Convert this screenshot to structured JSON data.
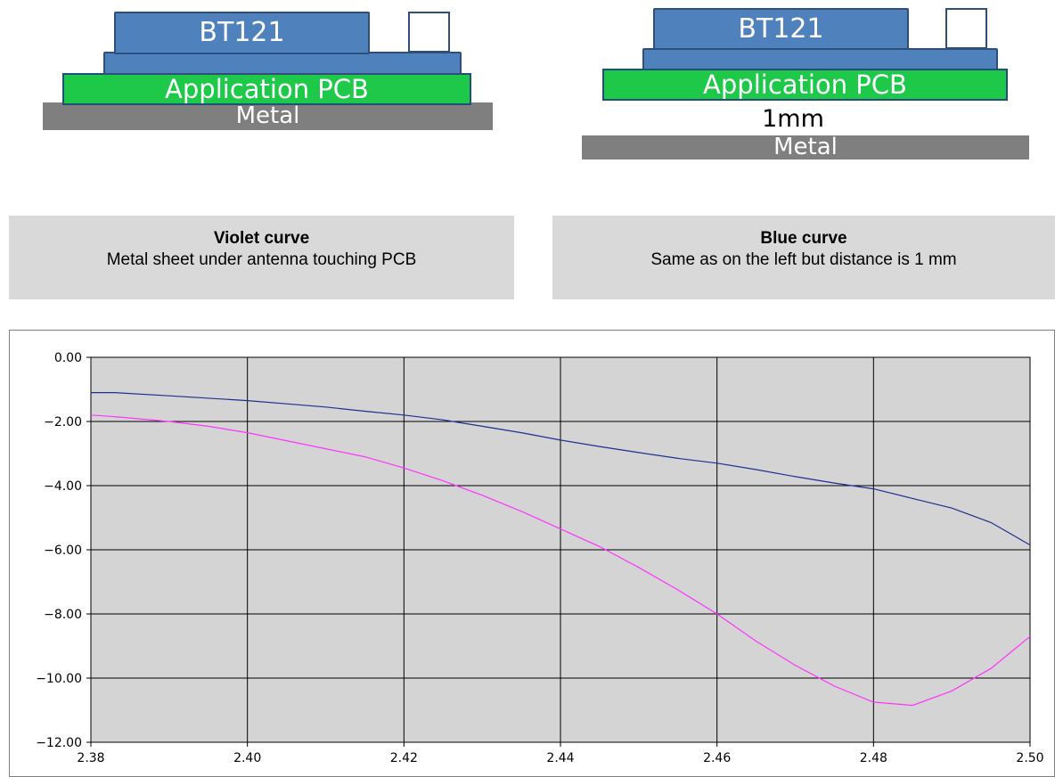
{
  "diagrams": [
    {
      "chip_label": "BT121",
      "pcb_label": "Application PCB",
      "metal_label": "Metal"
    },
    {
      "chip_label": "BT121",
      "pcb_label": "Application PCB",
      "gap_label": "1mm",
      "metal_label": "Metal"
    }
  ],
  "captions": [
    {
      "title": "Violet curve",
      "description": "Metal sheet under antenna touching PCB"
    },
    {
      "title": "Blue curve",
      "description": "Same as on the left but distance is 1 mm"
    }
  ],
  "colors": {
    "plot_background": "#d4d4d4",
    "violet_series": "#ff33ff",
    "blue_series": "#1f2f8f",
    "grid": "#000000"
  },
  "chart_data": {
    "type": "line",
    "title": "",
    "xlabel": "",
    "ylabel": "",
    "xlim": [
      2.38,
      2.5
    ],
    "ylim": [
      -12,
      0
    ],
    "xticks": [
      2.38,
      2.4,
      2.42,
      2.44,
      2.46,
      2.48,
      2.5
    ],
    "xtick_labels": [
      "2.38",
      "2.40",
      "2.42",
      "2.44",
      "2.46",
      "2.48",
      "2.50"
    ],
    "yticks": [
      0,
      -2,
      -4,
      -6,
      -8,
      -10,
      -12
    ],
    "ytick_labels": [
      "0.00",
      "−2.00",
      "−4.00",
      "−6.00",
      "−8.00",
      "−10.00",
      "−12.00"
    ],
    "grid": true,
    "series": [
      {
        "color": "#1f2f8f",
        "x": [
          2.38,
          2.383,
          2.39,
          2.4,
          2.405,
          2.41,
          2.415,
          2.42,
          2.425,
          2.43,
          2.435,
          2.44,
          2.445,
          2.45,
          2.455,
          2.46,
          2.465,
          2.47,
          2.475,
          2.48,
          2.485,
          2.49,
          2.495,
          2.5
        ],
        "y": [
          -1.1,
          -1.1,
          -1.2,
          -1.35,
          -1.45,
          -1.55,
          -1.68,
          -1.8,
          -1.95,
          -2.15,
          -2.35,
          -2.58,
          -2.78,
          -2.97,
          -3.15,
          -3.3,
          -3.5,
          -3.72,
          -3.92,
          -4.1,
          -4.4,
          -4.7,
          -5.15,
          -5.85
        ]
      },
      {
        "color": "#ff33ff",
        "x": [
          2.38,
          2.383,
          2.39,
          2.395,
          2.4,
          2.405,
          2.41,
          2.415,
          2.42,
          2.425,
          2.43,
          2.435,
          2.44,
          2.445,
          2.45,
          2.455,
          2.46,
          2.465,
          2.47,
          2.475,
          2.48,
          2.485,
          2.49,
          2.495,
          2.5
        ],
        "y": [
          -1.8,
          -1.85,
          -2.0,
          -2.15,
          -2.35,
          -2.6,
          -2.85,
          -3.1,
          -3.45,
          -3.85,
          -4.3,
          -4.8,
          -5.35,
          -5.9,
          -6.55,
          -7.25,
          -8.0,
          -8.85,
          -9.6,
          -10.25,
          -10.75,
          -10.85,
          -10.4,
          -9.7,
          -8.7
        ]
      }
    ]
  }
}
